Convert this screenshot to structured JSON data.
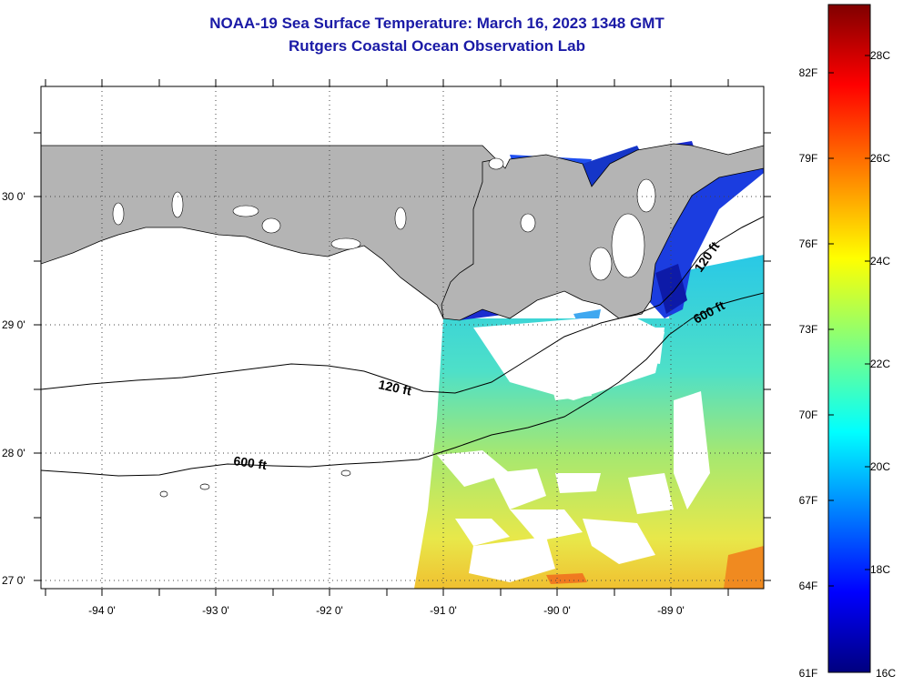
{
  "title": {
    "line1": "NOAA-19 Sea Surface Temperature:  March 16, 2023 1348 GMT",
    "line2": "Rutgers Coastal Ocean Observation Lab"
  },
  "map": {
    "lat_labels": [
      "30 0'",
      "29 0'",
      "28 0'",
      "27 0'"
    ],
    "lon_labels": [
      "-94 0'",
      "-93 0'",
      "-92 0'",
      "-91 0'",
      "-90 0'",
      "-89 0'"
    ],
    "contour_labels": [
      {
        "text": "120 ft",
        "id": "west-120"
      },
      {
        "text": "600 ft",
        "id": "west-600"
      },
      {
        "text": "120 ft",
        "id": "east-120"
      },
      {
        "text": "600 ft",
        "id": "east-600"
      }
    ],
    "colors": {
      "land": "#b4b4b4",
      "water_nodata": "#ffffff",
      "title": "#1a1aa6"
    }
  },
  "colorbar": {
    "fahrenheit": [
      "82F",
      "79F",
      "76F",
      "73F",
      "70F",
      "67F",
      "64F",
      "61F"
    ],
    "celsius": [
      "28C",
      "26C",
      "24C",
      "22C",
      "20C",
      "18C",
      "16C"
    ],
    "range_c": [
      16,
      29
    ]
  }
}
